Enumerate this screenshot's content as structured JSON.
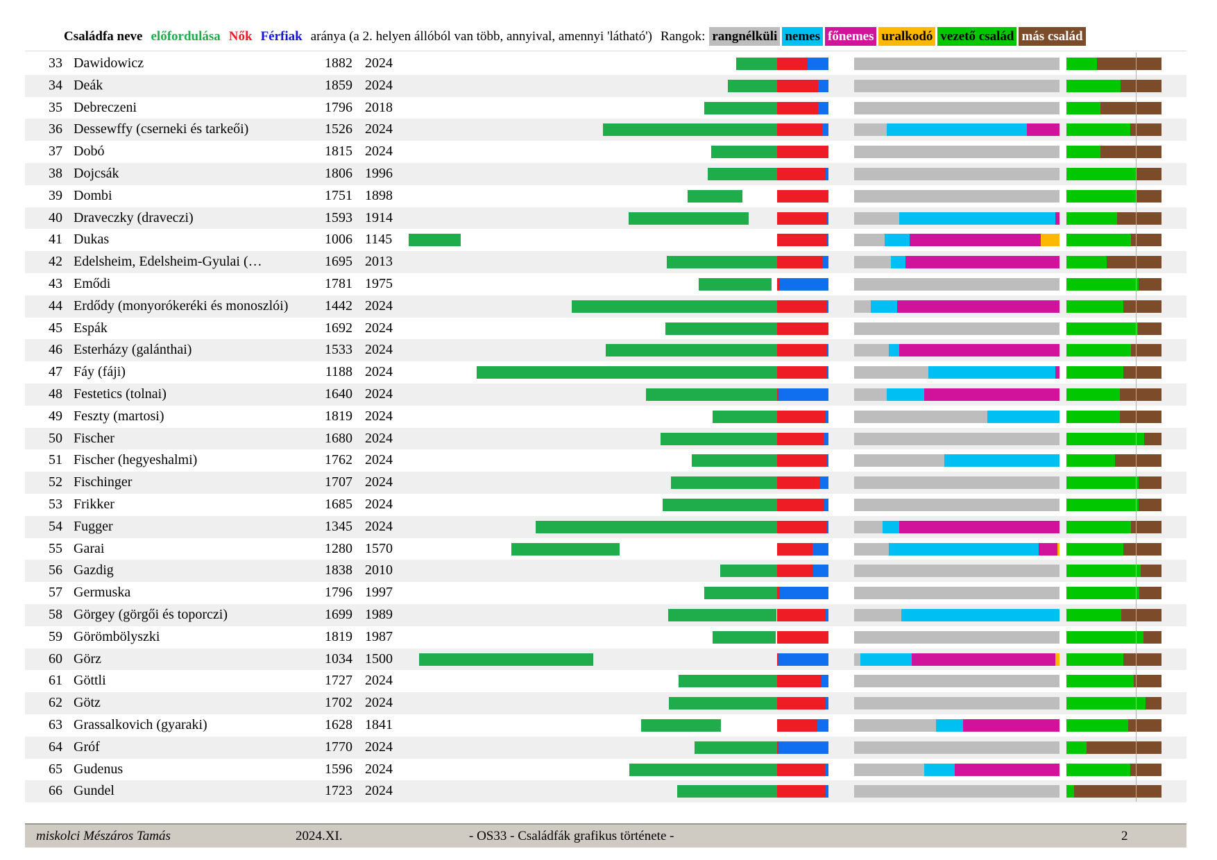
{
  "header": {
    "name_label": "Családfa neve",
    "occurrence_label": "előfordulása",
    "women_label": "Nők",
    "men_label": "Férfiak",
    "ratio_label": "aránya (a 2. helyen állóból van több, annyival, amennyi 'látható')",
    "ranks_label": "Rangok:",
    "legend": [
      {
        "label": "rangnélküli",
        "color": "#bdbdbd",
        "text_color": "#000000"
      },
      {
        "label": "nemes",
        "color": "#00bff3",
        "text_color": "#000000"
      },
      {
        "label": "főnemes",
        "color": "#d1139b",
        "text_color": "#ffffff"
      },
      {
        "label": "uralkodó",
        "color": "#ffb800",
        "text_color": "#000000"
      },
      {
        "label": "vezető család",
        "color": "#00c700",
        "text_color": "#000000"
      },
      {
        "label": "más család",
        "color": "#7b4b2a",
        "text_color": "#ffffff"
      }
    ]
  },
  "colors": {
    "occurrence": "#1fad4b",
    "women": "#ee1c24",
    "men": "#0f6fef",
    "unranked": "#bdbdbd",
    "noble": "#00bff3",
    "high_noble": "#d1139b",
    "ruler": "#ffb800",
    "leading": "#00c700",
    "other": "#7b4b2a"
  },
  "chart_data": {
    "type": "table",
    "occurrence_axis": {
      "start": 1006,
      "end": 2024
    },
    "rows": [
      {
        "n": "33",
        "name": "Dawidowicz",
        "from": "1882",
        "to": "2024",
        "women": 0.6,
        "men": 0.4,
        "ranks": [
          1,
          0,
          0,
          0
        ],
        "leading": 0.32
      },
      {
        "n": "34",
        "name": "Deák",
        "from": "1859",
        "to": "2024",
        "women": 0.8,
        "men": 0.2,
        "ranks": [
          1,
          0,
          0,
          0
        ],
        "leading": 0.57
      },
      {
        "n": "35",
        "name": "Debreczeni",
        "from": "1796",
        "to": "2018",
        "women": 0.8,
        "men": 0.2,
        "ranks": [
          1,
          0,
          0,
          0
        ],
        "leading": 0.36
      },
      {
        "n": "36",
        "name": "Dessewffy (cserneki és tarkeői)",
        "from": "1526",
        "to": "2024",
        "women": 0.88,
        "men": 0.12,
        "ranks": [
          0.16,
          0.68,
          0.16,
          0
        ],
        "leading": 0.67
      },
      {
        "n": "37",
        "name": "Dobó",
        "from": "1815",
        "to": "2024",
        "women": 1.0,
        "men": 0.0,
        "ranks": [
          1,
          0,
          0,
          0
        ],
        "leading": 0.36
      },
      {
        "n": "38",
        "name": "Dojcsák",
        "from": "1806",
        "to": "1996",
        "women": 0.94,
        "men": 0.06,
        "ranks": [
          1,
          0,
          0,
          0
        ],
        "leading": 0.74
      },
      {
        "n": "39",
        "name": "Dombi",
        "from": "1751",
        "to": "1898",
        "women": 1.0,
        "men": 0.0,
        "ranks": [
          1,
          0,
          0,
          0
        ],
        "leading": 0.74
      },
      {
        "n": "40",
        "name": "Draveczky (draveczi)",
        "from": "1593",
        "to": "1914",
        "women": 0.97,
        "men": 0.03,
        "ranks": [
          0.22,
          0.76,
          0.02,
          0
        ],
        "leading": 0.53
      },
      {
        "n": "41",
        "name": "Dukas",
        "from": "1006",
        "to": "1145",
        "women": 0.97,
        "men": 0.03,
        "ranks": [
          0.15,
          0.12,
          0.64,
          0.09
        ],
        "leading": 0.68
      },
      {
        "n": "42",
        "name": "Edelsheim, Edelsheim-Gyulai (…",
        "from": "1695",
        "to": "2013",
        "women": 0.89,
        "men": 0.11,
        "ranks": [
          0.18,
          0.07,
          0.75,
          0
        ],
        "leading": 0.42
      },
      {
        "n": "43",
        "name": "Emődi",
        "from": "1781",
        "to": "1975",
        "women": 0.06,
        "men": 0.94,
        "ranks": [
          1,
          0,
          0,
          0
        ],
        "leading": 0.76
      },
      {
        "n": "44",
        "name": "Erdődy (monyorókeréki és monoszlói)",
        "from": "1442",
        "to": "2024",
        "women": 0.97,
        "men": 0.03,
        "ranks": [
          0.08,
          0.13,
          0.79,
          0
        ],
        "leading": 0.6
      },
      {
        "n": "45",
        "name": "Espák",
        "from": "1692",
        "to": "2024",
        "women": 1.0,
        "men": 0.0,
        "ranks": [
          1,
          0,
          0,
          0
        ],
        "leading": 0.75
      },
      {
        "n": "46",
        "name": "Esterházy (galánthai)",
        "from": "1533",
        "to": "2024",
        "women": 0.97,
        "men": 0.03,
        "ranks": [
          0.17,
          0.05,
          0.78,
          0
        ],
        "leading": 0.68
      },
      {
        "n": "47",
        "name": "Fáy (fáji)",
        "from": "1188",
        "to": "2024",
        "women": 0.97,
        "men": 0.03,
        "ranks": [
          0.36,
          0.62,
          0.02,
          0
        ],
        "leading": 0.6
      },
      {
        "n": "48",
        "name": "Festetics (tolnai)",
        "from": "1640",
        "to": "2024",
        "women": 0.03,
        "men": 0.97,
        "ranks": [
          0.16,
          0.18,
          0.66,
          0
        ],
        "leading": 0.56
      },
      {
        "n": "49",
        "name": "Feszty (martosi)",
        "from": "1819",
        "to": "2024",
        "women": 0.95,
        "men": 0.05,
        "ranks": [
          0.65,
          0.35,
          0,
          0
        ],
        "leading": 0.56
      },
      {
        "n": "50",
        "name": "Fischer",
        "from": "1680",
        "to": "2024",
        "women": 0.9,
        "men": 0.1,
        "ranks": [
          1,
          0,
          0,
          0
        ],
        "leading": 0.82
      },
      {
        "n": "51",
        "name": "Fischer (hegyeshalmi)",
        "from": "1762",
        "to": "2024",
        "women": 0.97,
        "men": 0.03,
        "ranks": [
          0.44,
          0.56,
          0,
          0
        ],
        "leading": 0.51
      },
      {
        "n": "52",
        "name": "Fischinger",
        "from": "1707",
        "to": "2024",
        "women": 0.84,
        "men": 0.16,
        "ranks": [
          1,
          0,
          0,
          0
        ],
        "leading": 0.76
      },
      {
        "n": "53",
        "name": "Frikker",
        "from": "1685",
        "to": "2024",
        "women": 0.92,
        "men": 0.08,
        "ranks": [
          1,
          0,
          0,
          0
        ],
        "leading": 0.76
      },
      {
        "n": "54",
        "name": "Fugger",
        "from": "1345",
        "to": "2024",
        "women": 0.97,
        "men": 0.03,
        "ranks": [
          0.14,
          0.08,
          0.78,
          0
        ],
        "leading": 0.68
      },
      {
        "n": "55",
        "name": "Garai",
        "from": "1280",
        "to": "1570",
        "women": 0.69,
        "men": 0.31,
        "ranks": [
          0.17,
          0.73,
          0.09,
          0.01
        ],
        "leading": 0.6
      },
      {
        "n": "56",
        "name": "Gazdig",
        "from": "1838",
        "to": "2010",
        "women": 0.7,
        "men": 0.3,
        "ranks": [
          1,
          0,
          0,
          0
        ],
        "leading": 0.78
      },
      {
        "n": "57",
        "name": "Germuska",
        "from": "1796",
        "to": "1997",
        "women": 0.06,
        "men": 0.94,
        "ranks": [
          1,
          0,
          0,
          0
        ],
        "leading": 0.77
      },
      {
        "n": "58",
        "name": "Görgey (görgői és toporczi)",
        "from": "1699",
        "to": "1989",
        "women": 0.94,
        "men": 0.06,
        "ranks": [
          0.23,
          0.77,
          0,
          0
        ],
        "leading": 0.58
      },
      {
        "n": "59",
        "name": "Görömbölyszki",
        "from": "1819",
        "to": "1987",
        "women": 1.0,
        "men": 0.0,
        "ranks": [
          1,
          0,
          0,
          0
        ],
        "leading": 0.81
      },
      {
        "n": "60",
        "name": "Görz",
        "from": "1034",
        "to": "1500",
        "women": 0.03,
        "men": 0.97,
        "ranks": [
          0.03,
          0.25,
          0.7,
          0.02
        ],
        "leading": 0.6
      },
      {
        "n": "61",
        "name": "Göttli",
        "from": "1727",
        "to": "2024",
        "women": 0.86,
        "men": 0.14,
        "ranks": [
          1,
          0,
          0,
          0
        ],
        "leading": 0.71
      },
      {
        "n": "62",
        "name": "Götz",
        "from": "1702",
        "to": "2024",
        "women": 0.94,
        "men": 0.06,
        "ranks": [
          1,
          0,
          0,
          0
        ],
        "leading": 0.83
      },
      {
        "n": "63",
        "name": "Grassalkovich (gyaraki)",
        "from": "1628",
        "to": "1841",
        "women": 0.78,
        "men": 0.22,
        "ranks": [
          0.4,
          0.13,
          0.47,
          0
        ],
        "leading": 0.65
      },
      {
        "n": "64",
        "name": "Gróf",
        "from": "1770",
        "to": "2024",
        "women": 0.03,
        "men": 0.97,
        "ranks": [
          1,
          0,
          0,
          0
        ],
        "leading": 0.21
      },
      {
        "n": "65",
        "name": "Gudenus",
        "from": "1596",
        "to": "2024",
        "women": 0.93,
        "men": 0.07,
        "ranks": [
          0.34,
          0.15,
          0.51,
          0
        ],
        "leading": 0.67
      },
      {
        "n": "66",
        "name": "Gundel",
        "from": "1723",
        "to": "2024",
        "women": 0.94,
        "men": 0.06,
        "ranks": [
          1,
          0,
          0,
          0
        ],
        "leading": 0.08
      }
    ]
  },
  "footer": {
    "author": "miskolci Mészáros Tamás",
    "date": "2024.XI.",
    "title": "- OS33  - Családfák grafikus története -",
    "page": "2"
  }
}
